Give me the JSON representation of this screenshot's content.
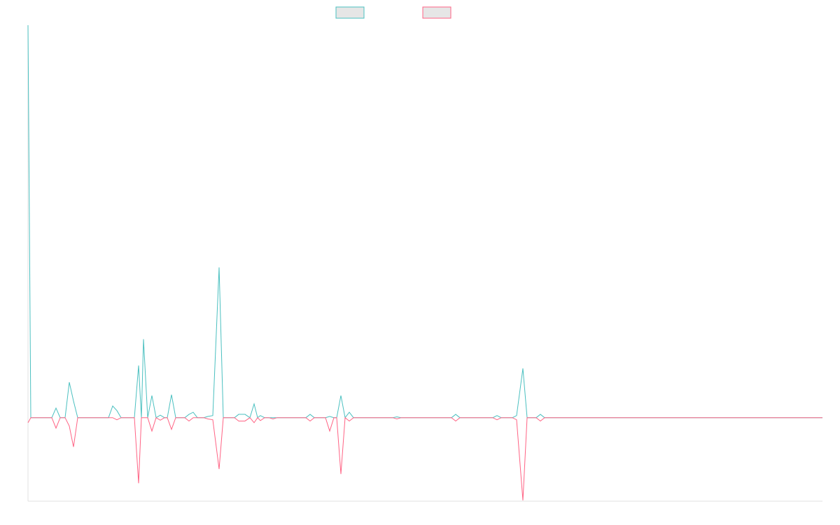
{
  "chart_data": {
    "type": "line",
    "x": [
      0,
      4,
      34,
      40,
      46,
      53,
      59,
      65,
      71,
      115,
      121,
      127,
      133,
      152,
      158,
      162,
      165,
      171,
      177,
      183,
      189,
      195,
      199,
      205,
      211,
      224,
      230,
      236,
      242,
      251,
      257,
      264,
      273,
      279,
      295,
      301,
      310,
      317,
      323,
      328,
      332,
      338,
      344,
      350,
      356,
      397,
      403,
      409,
      425,
      431,
      437,
      441,
      447,
      453,
      459,
      465,
      521,
      527,
      533,
      605,
      611,
      617,
      664,
      670,
      676,
      692,
      698,
      707,
      713,
      726,
      732,
      738,
      1135
    ],
    "series": [
      {
        "color": "#4bc0c0",
        "values": [
          94,
          0,
          0,
          2.3,
          0,
          0,
          8.5,
          4,
          0,
          0,
          2.8,
          1.7,
          0,
          0,
          12.5,
          0,
          18.8,
          0,
          5.3,
          0,
          0.6,
          0,
          0,
          5.5,
          0,
          0,
          0.8,
          1.3,
          0,
          0,
          0.3,
          0.5,
          36,
          0,
          0,
          0.8,
          0.8,
          0,
          3.3,
          0,
          0.5,
          0,
          0,
          0,
          0,
          0,
          0.8,
          0,
          0,
          0.3,
          0,
          0,
          5.3,
          0,
          1.3,
          0,
          0,
          0.2,
          0,
          0,
          0.8,
          0,
          0,
          0.5,
          0,
          0,
          0.5,
          11.8,
          0,
          0,
          0.8,
          0,
          0
        ]
      },
      {
        "color": "#ff6384",
        "values": [
          -1.2,
          0,
          0,
          -2.5,
          0,
          0,
          -2,
          -7,
          0,
          0,
          0,
          -0.5,
          0,
          0,
          -15.7,
          0,
          0,
          0,
          -3.2,
          0,
          -0.6,
          0,
          0,
          -2.8,
          0,
          0,
          -0.8,
          0,
          0,
          0,
          -0.3,
          -0.5,
          -12.3,
          0,
          0,
          -0.8,
          -0.8,
          0,
          -1.2,
          0,
          -0.7,
          0,
          0,
          -0.3,
          0,
          0,
          -0.8,
          0,
          0,
          -3.2,
          0,
          0,
          -13.5,
          0,
          -0.8,
          0,
          0,
          -0.3,
          0,
          0,
          -0.8,
          0,
          0,
          -0.5,
          0,
          0,
          -0.5,
          -19.8,
          0,
          0,
          -0.8,
          0,
          0
        ]
      }
    ],
    "xlim": [
      0,
      1135
    ],
    "ylim": [
      -20,
      94
    ]
  }
}
